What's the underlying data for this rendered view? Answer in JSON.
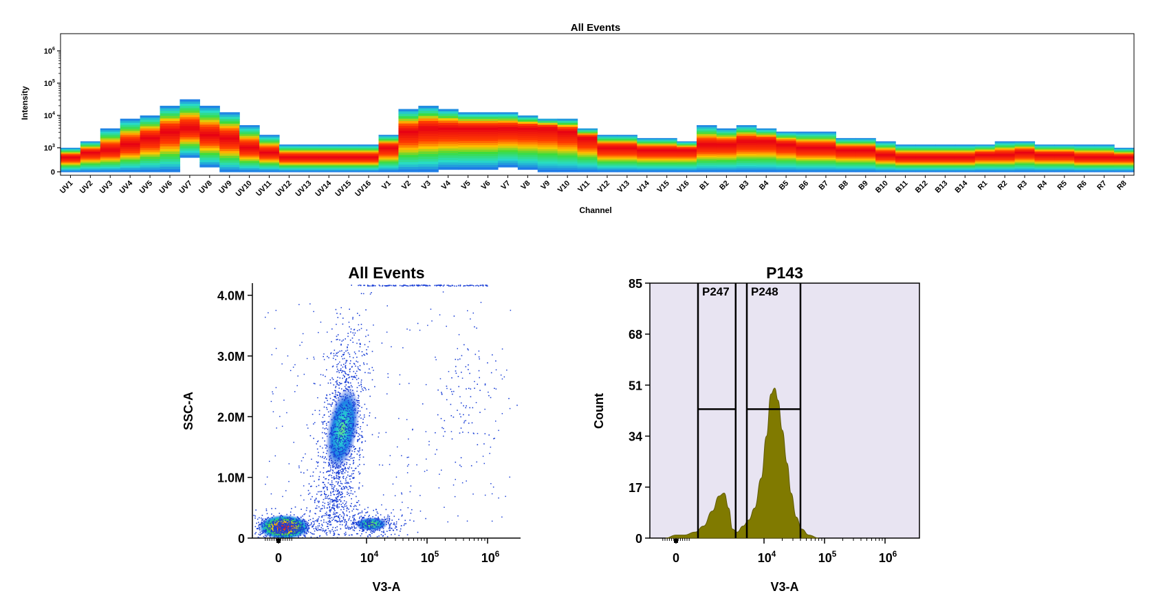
{
  "chart_data": [
    {
      "type": "heatmap",
      "title": "All Events",
      "xlabel": "Channel",
      "ylabel": "Intensity",
      "y_scale": "log",
      "y_ticks": [
        {
          "base": "0",
          "exp": ""
        },
        {
          "base": "10",
          "exp": "3"
        },
        {
          "base": "10",
          "exp": "4"
        },
        {
          "base": "10",
          "exp": "5"
        },
        {
          "base": "10",
          "exp": "6"
        }
      ],
      "channels": [
        "UV1",
        "UV2",
        "UV3",
        "UV4",
        "UV5",
        "UV6",
        "UV7",
        "UV8",
        "UV9",
        "UV10",
        "UV11",
        "UV12",
        "UV13",
        "UV14",
        "UV15",
        "UV16",
        "V1",
        "V2",
        "V3",
        "V4",
        "V5",
        "V6",
        "V7",
        "V8",
        "V9",
        "V10",
        "V11",
        "V12",
        "V13",
        "V14",
        "V15",
        "V16",
        "B1",
        "B2",
        "B3",
        "B4",
        "B5",
        "B6",
        "B7",
        "B8",
        "B9",
        "B10",
        "B11",
        "B12",
        "B13",
        "B14",
        "R1",
        "R2",
        "R3",
        "R4",
        "R5",
        "R6",
        "R7",
        "R8"
      ],
      "median_log10": [
        2.6,
        2.8,
        2.9,
        3.1,
        3.3,
        3.5,
        3.6,
        3.4,
        3.3,
        3.0,
        2.8,
        2.6,
        2.6,
        2.6,
        2.6,
        2.6,
        3.0,
        3.5,
        3.6,
        3.6,
        3.6,
        3.6,
        3.6,
        3.6,
        3.6,
        3.5,
        3.3,
        3.0,
        3.0,
        2.9,
        2.9,
        2.9,
        3.1,
        3.1,
        3.2,
        3.2,
        3.1,
        3.0,
        3.0,
        2.9,
        2.9,
        2.7,
        2.6,
        2.6,
        2.6,
        2.6,
        2.7,
        2.7,
        2.8,
        2.7,
        2.7,
        2.6,
        2.6,
        2.6
      ],
      "max_log10": [
        3.0,
        3.2,
        3.6,
        3.9,
        4.0,
        4.3,
        4.5,
        4.3,
        4.1,
        3.7,
        3.4,
        3.1,
        3.1,
        3.1,
        3.1,
        3.1,
        3.4,
        4.2,
        4.3,
        4.2,
        4.1,
        4.1,
        4.1,
        4.0,
        3.9,
        3.9,
        3.6,
        3.4,
        3.4,
        3.3,
        3.3,
        3.2,
        3.7,
        3.6,
        3.7,
        3.6,
        3.5,
        3.5,
        3.5,
        3.3,
        3.3,
        3.2,
        3.1,
        3.1,
        3.1,
        3.1,
        3.1,
        3.2,
        3.2,
        3.1,
        3.1,
        3.1,
        3.1,
        3.0
      ],
      "min_log10": [
        2.0,
        2.0,
        2.0,
        2.0,
        2.0,
        2.0,
        2.6,
        2.2,
        2.0,
        2.0,
        2.0,
        2.0,
        2.0,
        2.0,
        2.0,
        2.0,
        2.0,
        2.0,
        2.0,
        2.1,
        2.1,
        2.1,
        2.2,
        2.1,
        2.0,
        2.0,
        2.0,
        2.0,
        2.0,
        2.0,
        2.0,
        2.0,
        2.0,
        2.0,
        2.0,
        2.0,
        2.0,
        2.0,
        2.0,
        2.0,
        2.0,
        2.0,
        2.0,
        2.0,
        2.0,
        2.0,
        2.0,
        2.0,
        2.0,
        2.0,
        2.0,
        2.0,
        2.0,
        2.0
      ]
    },
    {
      "type": "scatter",
      "title": "All Events",
      "xlabel": "V3-A",
      "ylabel": "SSC-A",
      "x_scale": "biexponential",
      "x_ticks": [
        {
          "base": "0",
          "exp": "",
          "value": 0
        },
        {
          "base": "10",
          "exp": "4",
          "value": 10000
        },
        {
          "base": "10",
          "exp": "5",
          "value": 100000
        },
        {
          "base": "10",
          "exp": "6",
          "value": 1000000
        }
      ],
      "y_ticks": [
        {
          "label": "0",
          "value": 0
        },
        {
          "label": "1.0M",
          "value": 1000000
        },
        {
          "label": "2.0M",
          "value": 2000000
        },
        {
          "label": "3.0M",
          "value": 3000000
        },
        {
          "label": "4.0M",
          "value": 4000000
        }
      ],
      "ylim": [
        0,
        4200000
      ],
      "populations": [
        {
          "name": "",
          "x_center": 200,
          "y_center": 180000,
          "density": "high"
        },
        {
          "name": "",
          "x_center": 4000,
          "y_center": 1800000,
          "density": "high"
        },
        {
          "name": "",
          "x_center": 12000,
          "y_center": 230000,
          "density": "medium"
        },
        {
          "name": "",
          "x_center": 400000,
          "y_center": 2400000,
          "density": "low"
        }
      ]
    },
    {
      "type": "area",
      "title": "P143",
      "xlabel": "V3-A",
      "ylabel": "Count",
      "x_scale": "biexponential",
      "x_ticks": [
        {
          "base": "0",
          "exp": "",
          "value": 0
        },
        {
          "base": "10",
          "exp": "4",
          "value": 10000
        },
        {
          "base": "10",
          "exp": "5",
          "value": 100000
        },
        {
          "base": "10",
          "exp": "6",
          "value": 1000000
        }
      ],
      "y_ticks": [
        "0",
        "17",
        "34",
        "51",
        "68",
        "85"
      ],
      "ylim": [
        0,
        85
      ],
      "fill_color": "#807a00",
      "background_color": "#e8e4f2",
      "series": [
        {
          "x": [
            -300,
            0,
            300,
            700,
            1000,
            1400,
            1800,
            2200,
            2600,
            3000,
            3600,
            4500,
            5600,
            7000,
            9000,
            11000,
            13000,
            15000,
            17000,
            20000,
            24000,
            28000,
            34000,
            42000,
            55000,
            80000
          ],
          "values": [
            0,
            1,
            1,
            2,
            4,
            9,
            14,
            15,
            10,
            3,
            2,
            4,
            6,
            10,
            20,
            34,
            48,
            50,
            46,
            36,
            25,
            15,
            7,
            3,
            1,
            0
          ]
        }
      ],
      "gates": [
        {
          "label": "P247",
          "x_range": [
            800,
            3400
          ],
          "marker_y": 43
        },
        {
          "label": "P248",
          "x_range": [
            5200,
            40000
          ],
          "marker_y": 43
        }
      ]
    }
  ]
}
